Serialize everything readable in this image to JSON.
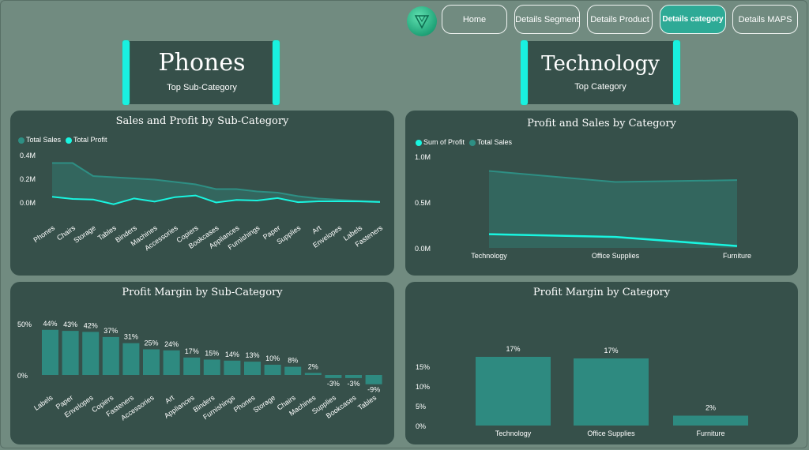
{
  "nav": {
    "buttons": [
      {
        "label": "Home",
        "active": false
      },
      {
        "label": "Details Segment",
        "active": false
      },
      {
        "label": "Details Product",
        "active": false
      },
      {
        "label": "Details category",
        "active": true
      },
      {
        "label": "Details MAPS",
        "active": false
      }
    ]
  },
  "cards": {
    "left": {
      "title": "Phones",
      "subtitle": "Top Sub-Category"
    },
    "right": {
      "title": "Technology",
      "subtitle": "Top Category"
    }
  },
  "colors": {
    "teal_dark": "#2e8f84",
    "teal_bright": "#19f5e0",
    "bar": "#2e8a80",
    "panel": "#36504a",
    "background": "#718b80"
  },
  "chart_data": [
    {
      "id": "sales-profit-subcat",
      "type": "line",
      "title": "Sales and Profit by Sub-Category",
      "legend": [
        "Total Sales",
        "Total Profit"
      ],
      "categories": [
        "Phones",
        "Chairs",
        "Storage",
        "Tables",
        "Binders",
        "Machines",
        "Accessories",
        "Copiers",
        "Bookcases",
        "Appliances",
        "Furnishings",
        "Paper",
        "Supplies",
        "Art",
        "Envelopes",
        "Labels",
        "Fasteners"
      ],
      "series": [
        {
          "name": "Total Sales",
          "values": [
            0.33,
            0.33,
            0.22,
            0.21,
            0.2,
            0.19,
            0.17,
            0.15,
            0.11,
            0.11,
            0.09,
            0.08,
            0.05,
            0.03,
            0.02,
            0.01,
            0.003
          ]
        },
        {
          "name": "Total Profit",
          "values": [
            0.045,
            0.027,
            0.022,
            -0.018,
            0.031,
            0.004,
            0.042,
            0.056,
            -0.003,
            0.018,
            0.013,
            0.034,
            -0.001,
            0.007,
            0.007,
            0.006,
            0.001
          ]
        }
      ],
      "yticks": [
        "0.4M",
        "0.2M",
        "0.0M"
      ],
      "ylim": [
        -0.03,
        0.4
      ]
    },
    {
      "id": "profit-sales-cat",
      "type": "line",
      "title": "Profit and Sales by Category",
      "legend": [
        "Sum of Profit",
        "Total Sales"
      ],
      "categories": [
        "Technology",
        "Office Supplies",
        "Furniture"
      ],
      "series": [
        {
          "name": "Sum of Profit",
          "values": [
            0.15,
            0.12,
            0.02
          ]
        },
        {
          "name": "Total Sales",
          "values": [
            0.84,
            0.72,
            0.74
          ]
        }
      ],
      "yticks": [
        "1.0M",
        "0.5M",
        "0.0M"
      ],
      "ylim": [
        0,
        1.0
      ]
    },
    {
      "id": "margin-subcat",
      "type": "bar",
      "title": "Profit Margin by Sub-Category",
      "categories": [
        "Labels",
        "Paper",
        "Envelopes",
        "Copiers",
        "Fasteners",
        "Accessories",
        "Art",
        "Appliances",
        "Binders",
        "Furnishings",
        "Phones",
        "Storage",
        "Chairs",
        "Machines",
        "Supplies",
        "Bookcases",
        "Tables"
      ],
      "values": [
        44,
        43,
        42,
        37,
        31,
        25,
        24,
        17,
        15,
        14,
        13,
        10,
        8,
        2,
        -3,
        -3,
        -9
      ],
      "labels": [
        "44%",
        "43%",
        "42%",
        "37%",
        "31%",
        "25%",
        "24%",
        "17%",
        "15%",
        "14%",
        "13%",
        "10%",
        "8%",
        "2%",
        "-3%",
        "-3%",
        "-9%"
      ],
      "yticks": [
        "50%",
        "0%"
      ],
      "ylim": [
        -10,
        50
      ]
    },
    {
      "id": "margin-cat",
      "type": "bar",
      "title": "Profit Margin by Category",
      "categories": [
        "Technology",
        "Office Supplies",
        "Furniture"
      ],
      "values": [
        17.4,
        17.0,
        2.5
      ],
      "labels": [
        "17%",
        "17%",
        "2%"
      ],
      "yticks": [
        "15%",
        "10%",
        "5%",
        "0%"
      ],
      "ylim": [
        0,
        18
      ]
    }
  ]
}
